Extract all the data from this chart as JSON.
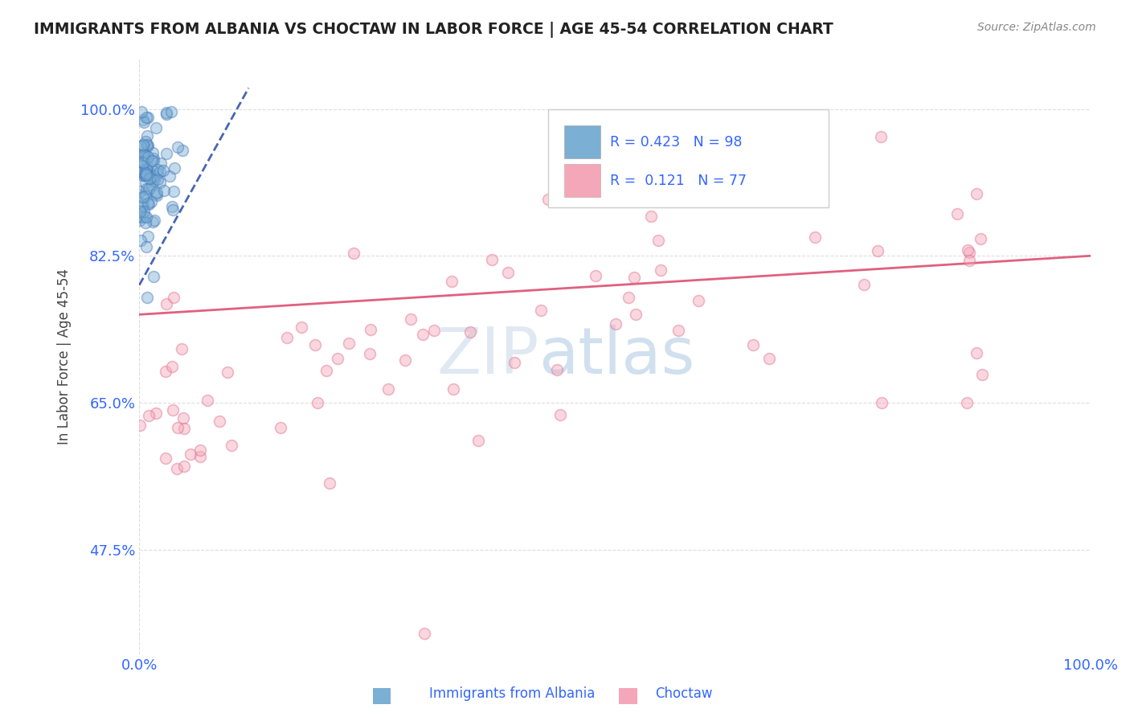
{
  "title": "IMMIGRANTS FROM ALBANIA VS CHOCTAW IN LABOR FORCE | AGE 45-54 CORRELATION CHART",
  "source_text": "Source: ZipAtlas.com",
  "ylabel": "In Labor Force | Age 45-54",
  "xlim": [
    0.0,
    1.0
  ],
  "ylim": [
    0.35,
    1.06
  ],
  "x_ticks": [
    0.0,
    1.0
  ],
  "x_tick_labels": [
    "0.0%",
    "100.0%"
  ],
  "y_ticks": [
    0.475,
    0.65,
    0.825,
    1.0
  ],
  "y_tick_labels": [
    "47.5%",
    "65.0%",
    "82.5%",
    "100.0%"
  ],
  "albania_R": 0.423,
  "albania_N": 98,
  "choctaw_R": 0.121,
  "choctaw_N": 77,
  "albania_color": "#7BAFD4",
  "albania_edge_color": "#4477BB",
  "choctaw_color": "#F4A7B9",
  "choctaw_edge_color": "#E07090",
  "albania_line_color": "#3355AA",
  "choctaw_line_color": "#E06080",
  "watermark_zip": "ZIP",
  "watermark_atlas": "atlas",
  "background_color": "#ffffff",
  "grid_color": "#dddddd",
  "tick_color": "#3366FF"
}
